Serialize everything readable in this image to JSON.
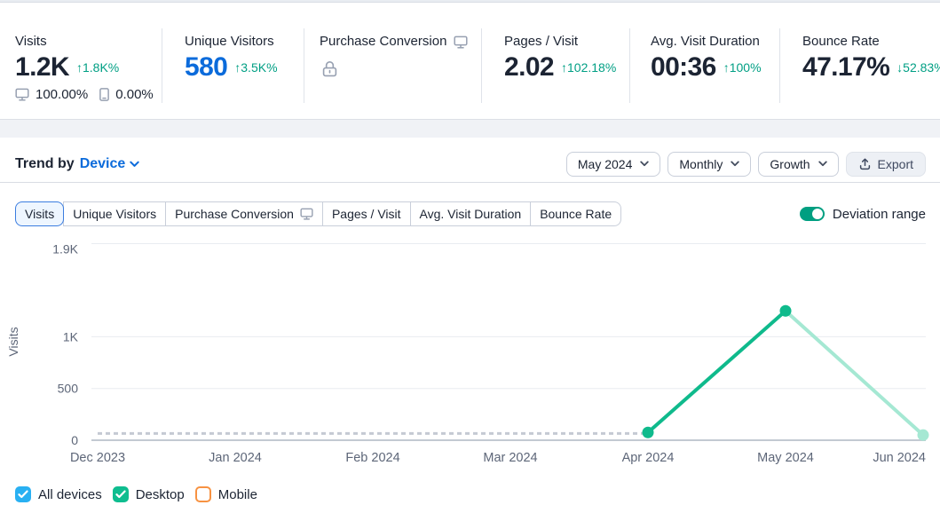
{
  "stats": [
    {
      "label": "Visits",
      "value": "1.2K",
      "change": "↑1.8K%",
      "direction": "up",
      "desktop_share": "100.00%",
      "mobile_share": "0.00%"
    },
    {
      "label": "Unique Visitors",
      "value": "580",
      "change": "↑3.5K%",
      "direction": "up"
    },
    {
      "label": "Purchase Conversion",
      "locked": true
    },
    {
      "label": "Pages / Visit",
      "value": "2.02",
      "change": "↑102.18%",
      "direction": "up"
    },
    {
      "label": "Avg. Visit Duration",
      "value": "00:36",
      "change": "↑100%",
      "direction": "up"
    },
    {
      "label": "Bounce Rate",
      "value": "47.17%",
      "change": "↓52.83%",
      "direction": "down"
    }
  ],
  "trend": {
    "title_prefix": "Trend by",
    "device_selector": "Device",
    "period_dropdown": "May 2024",
    "granularity_dropdown": "Monthly",
    "mode_dropdown": "Growth",
    "export_label": "Export",
    "tabs": [
      {
        "label": "Visits",
        "selected": true
      },
      {
        "label": "Unique Visitors",
        "selected": false
      },
      {
        "label": "Purchase Conversion",
        "selected": false,
        "desktop_icon": true
      },
      {
        "label": "Pages / Visit",
        "selected": false
      },
      {
        "label": "Avg. Visit Duration",
        "selected": false
      },
      {
        "label": "Bounce Rate",
        "selected": false
      }
    ],
    "deviation_range": {
      "label": "Deviation range",
      "enabled": true
    }
  },
  "chart_data": {
    "type": "line",
    "ylabel": "Visits",
    "x": [
      "Dec 2023",
      "Jan 2024",
      "Feb 2024",
      "Mar 2024",
      "Apr 2024",
      "May 2024",
      "Jun 2024"
    ],
    "ylim": [
      0,
      1900
    ],
    "yticks": [
      {
        "label": "1.9K",
        "value": 1900
      },
      {
        "label": "1K",
        "value": 1000
      },
      {
        "label": "500",
        "value": 500
      },
      {
        "label": "0",
        "value": 0
      }
    ],
    "grid": true,
    "legend_position": "bottom",
    "series": [
      {
        "name": "no-data-baseline",
        "style": "dashed",
        "color": "#c5cad3",
        "dots": false,
        "points": [
          {
            "x": "Dec 2023",
            "y": 65
          },
          {
            "x": "Apr 2024",
            "y": 65
          }
        ]
      },
      {
        "name": "visits-estimated",
        "style": "solid",
        "color": "#a5e8d3",
        "dots": true,
        "points": [
          {
            "x": "May 2024",
            "y": 1250
          },
          {
            "x": "Jun 2024",
            "y": 50
          }
        ]
      },
      {
        "name": "visits-actual",
        "style": "solid",
        "color": "#0fba8c",
        "dots": true,
        "points": [
          {
            "x": "Apr 2024",
            "y": 75
          },
          {
            "x": "May 2024",
            "y": 1250
          }
        ]
      }
    ]
  },
  "legend": [
    {
      "label": "All devices",
      "checked": true,
      "color": "#29b0f2"
    },
    {
      "label": "Desktop",
      "checked": true,
      "color": "#0ebd8f"
    },
    {
      "label": "Mobile",
      "checked": false,
      "color": "#f79242"
    }
  ],
  "colors": {
    "teal_change": "#009f84",
    "blue_value": "#0b6bdb",
    "toggle_on": "#009f81",
    "selected_tab_border": "#3b7de0"
  }
}
